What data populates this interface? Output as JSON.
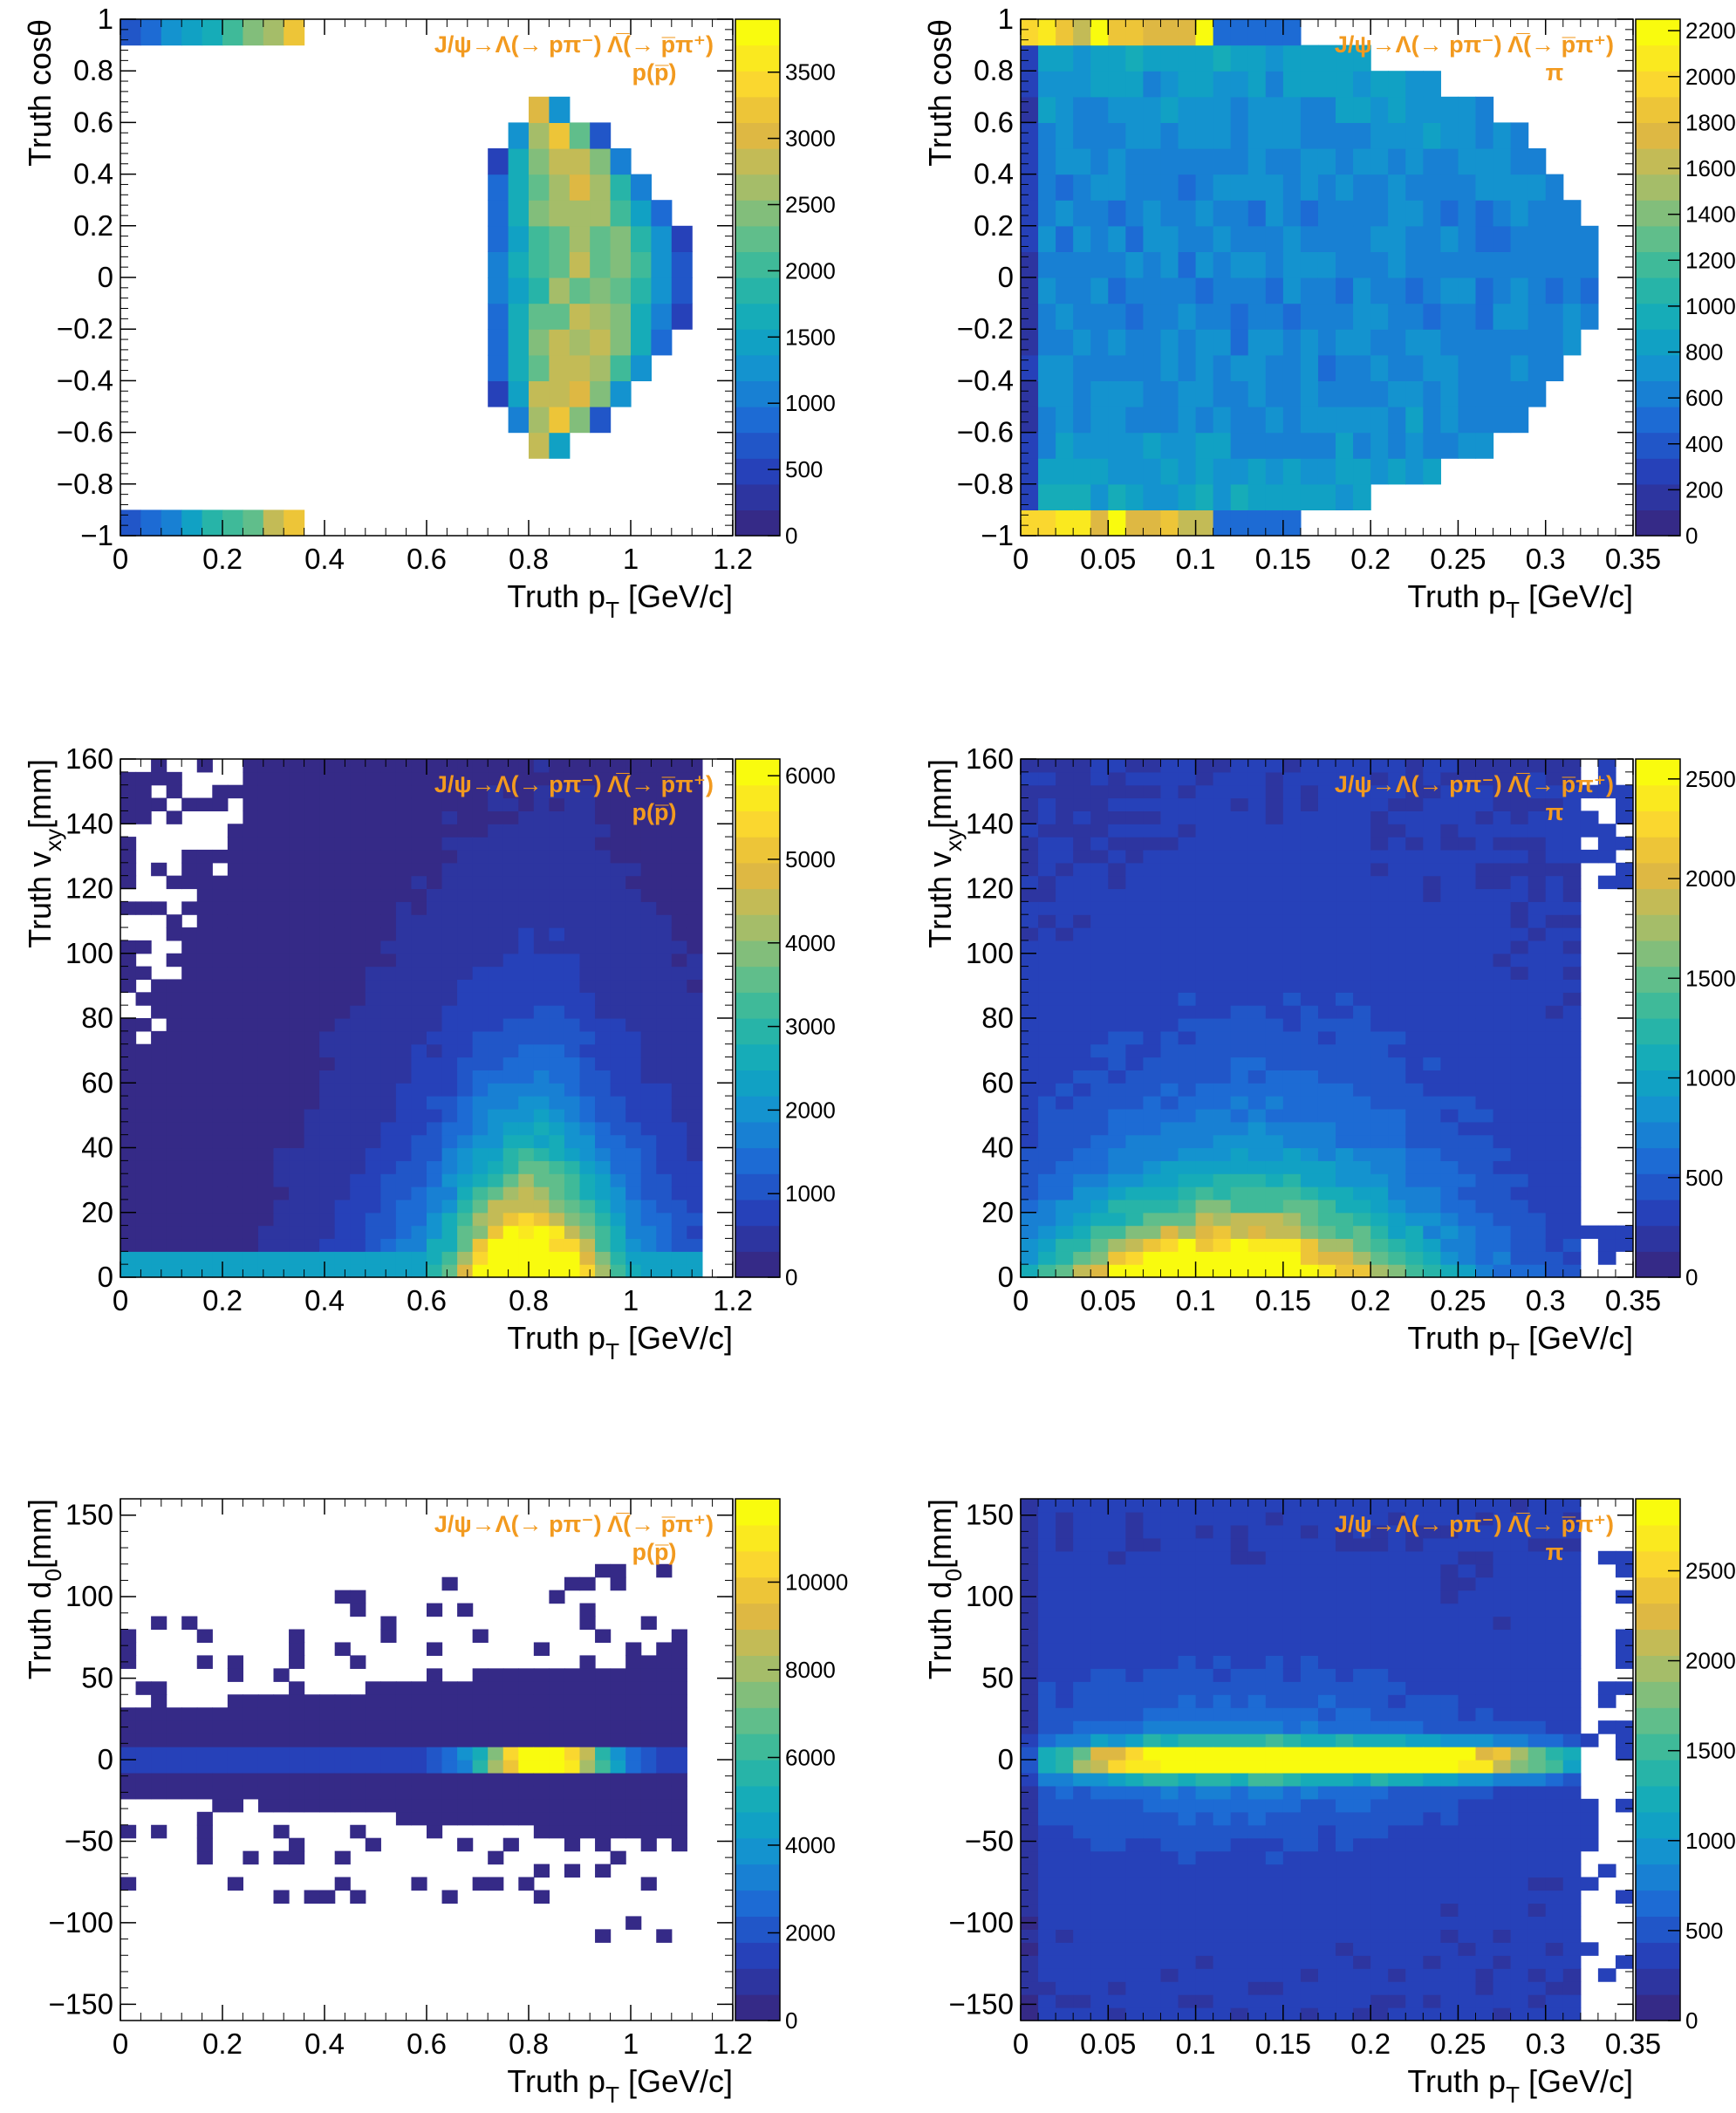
{
  "palette": {
    "stops": [
      "#352a87",
      "#263fb7",
      "#1e67d4",
      "#158fd2",
      "#0fa9be",
      "#2fb8a0",
      "#6dbf86",
      "#b0bd63",
      "#e3b73f",
      "#fbd92e",
      "#f9fb0e"
    ],
    "label_color": "#f29a1f",
    "axis_color": "#000000"
  },
  "chart_data": [
    {
      "id": "p-costheta",
      "type": "heatmap",
      "shape": "arc",
      "title_line1": "J/ψ→Λ(→ pπ⁻) Λ̅(→ p̅π⁺)",
      "title_line2": "p(p̅)",
      "xlabel": "Truth p",
      "xlabel_sub": "T",
      "xlabel_unit": " [GeV/c]",
      "ylabel": "Truth cosθ",
      "ylabel_sub": "",
      "ylabel_unit": "",
      "xlim": [
        0,
        1.2
      ],
      "ylim": [
        -1,
        1
      ],
      "x_ticks": [
        0,
        0.2,
        0.4,
        0.6,
        0.8,
        1,
        1.2
      ],
      "x_tick_labels": [
        "0",
        "0.2",
        "0.4",
        "0.6",
        "0.8",
        "1",
        "1.2"
      ],
      "y_ticks": [
        -1,
        -0.8,
        -0.6,
        -0.4,
        -0.2,
        0,
        0.2,
        0.4,
        0.6,
        0.8,
        1
      ],
      "y_tick_labels": [
        "−1",
        "−0.8",
        "−0.6",
        "−0.4",
        "−0.2",
        "0",
        "0.2",
        "0.4",
        "0.6",
        "0.8",
        "1"
      ],
      "zlim": [
        0,
        3900
      ],
      "z_ticks": [
        0,
        500,
        1000,
        1500,
        2000,
        2500,
        3000,
        3500
      ],
      "z_tick_labels": [
        "0",
        "500",
        "1000",
        "1500",
        "2000",
        "2500",
        "3000",
        "3500"
      ],
      "nx": 30,
      "ny": 20,
      "params": {
        "p0": 1.12,
        "pin": 0.7,
        "pk": 0.8,
        "width": 0.32,
        "peak": 2400,
        "edge": 0.38,
        "edgepeak": 3800
      }
    },
    {
      "id": "pi-costheta",
      "type": "heatmap",
      "shape": "ellipse",
      "title_line1": "J/ψ→Λ(→ pπ⁻) Λ̅(→ p̅π⁺)",
      "title_line2": "π",
      "xlabel": "Truth p",
      "xlabel_sub": "T",
      "xlabel_unit": " [GeV/c]",
      "ylabel": "Truth cosθ",
      "ylabel_sub": "",
      "ylabel_unit": "",
      "xlim": [
        0,
        0.35
      ],
      "ylim": [
        -1,
        1
      ],
      "x_ticks": [
        0,
        0.05,
        0.1,
        0.15,
        0.2,
        0.25,
        0.3,
        0.35
      ],
      "x_tick_labels": [
        "0",
        "0.05",
        "0.1",
        "0.15",
        "0.2",
        "0.25",
        "0.3",
        "0.35"
      ],
      "y_ticks": [
        -1,
        -0.8,
        -0.6,
        -0.4,
        -0.2,
        0,
        0.2,
        0.4,
        0.6,
        0.8,
        1
      ],
      "y_tick_labels": [
        "−1",
        "−0.8",
        "−0.6",
        "−0.4",
        "−0.2",
        "0",
        "0.2",
        "0.4",
        "0.6",
        "0.8",
        "1"
      ],
      "zlim": [
        0,
        2250
      ],
      "z_ticks": [
        0,
        200,
        400,
        600,
        800,
        1000,
        1200,
        1400,
        1600,
        1800,
        2000,
        2200
      ],
      "z_tick_labels": [
        "0",
        "200",
        "400",
        "600",
        "800",
        "1000",
        "1200",
        "1400",
        "1600",
        "1800",
        "2000",
        "2200"
      ],
      "nx": 35,
      "ny": 20,
      "params": {
        "p0": 0.33,
        "peak": 700,
        "edge": 0.115,
        "edgepeak": 2200
      }
    },
    {
      "id": "p-vxy",
      "type": "heatmap",
      "shape": "vxy-p",
      "title_line1": "J/ψ→Λ(→ pπ⁻) Λ̅(→ p̅π⁺)",
      "title_line2": "p(p̅)",
      "xlabel": "Truth p",
      "xlabel_sub": "T",
      "xlabel_unit": " [GeV/c]",
      "ylabel": "Truth v",
      "ylabel_sub": "xy",
      "ylabel_unit": "[mm]",
      "xlim": [
        0,
        1.2
      ],
      "ylim": [
        0,
        160
      ],
      "x_ticks": [
        0,
        0.2,
        0.4,
        0.6,
        0.8,
        1,
        1.2
      ],
      "x_tick_labels": [
        "0",
        "0.2",
        "0.4",
        "0.6",
        "0.8",
        "1",
        "1.2"
      ],
      "y_ticks": [
        0,
        20,
        40,
        60,
        80,
        100,
        120,
        140,
        160
      ],
      "y_tick_labels": [
        "0",
        "20",
        "40",
        "60",
        "80",
        "100",
        "120",
        "140",
        "160"
      ],
      "zlim": [
        0,
        6200
      ],
      "z_ticks": [
        0,
        1000,
        2000,
        3000,
        4000,
        5000,
        6000
      ],
      "z_tick_labels": [
        "0",
        "1000",
        "2000",
        "3000",
        "4000",
        "5000",
        "6000"
      ],
      "nx": 40,
      "ny": 40,
      "params": {
        "xmax": 1.14,
        "peakx": 0.8,
        "peak": 6100
      }
    },
    {
      "id": "pi-vxy",
      "type": "heatmap",
      "shape": "vxy-pi",
      "title_line1": "J/ψ→Λ(→ pπ⁻) Λ̅(→ p̅π⁺)",
      "title_line2": "π",
      "xlabel": "Truth p",
      "xlabel_sub": "T",
      "xlabel_unit": " [GeV/c]",
      "ylabel": "Truth v",
      "ylabel_sub": "xy",
      "ylabel_unit": "[mm]",
      "xlim": [
        0,
        0.35
      ],
      "ylim": [
        0,
        160
      ],
      "x_ticks": [
        0,
        0.05,
        0.1,
        0.15,
        0.2,
        0.25,
        0.3,
        0.35
      ],
      "x_tick_labels": [
        "0",
        "0.05",
        "0.1",
        "0.15",
        "0.2",
        "0.25",
        "0.3",
        "0.35"
      ],
      "y_ticks": [
        0,
        20,
        40,
        60,
        80,
        100,
        120,
        140,
        160
      ],
      "y_tick_labels": [
        "0",
        "20",
        "40",
        "60",
        "80",
        "100",
        "120",
        "140",
        "160"
      ],
      "zlim": [
        0,
        2600
      ],
      "z_ticks": [
        0,
        500,
        1000,
        1500,
        2000,
        2500
      ],
      "z_tick_labels": [
        "0",
        "500",
        "1000",
        "1500",
        "2000",
        "2500"
      ],
      "nx": 35,
      "ny": 40,
      "params": {
        "xmax": 0.315,
        "peakx": 0.11,
        "peak": 2550
      }
    },
    {
      "id": "p-d0",
      "type": "heatmap",
      "shape": "d0-p",
      "title_line1": "J/ψ→Λ(→ pπ⁻) Λ̅(→ p̅π⁺)",
      "title_line2": "p(p̅)",
      "xlabel": "Truth p",
      "xlabel_sub": "T",
      "xlabel_unit": " [GeV/c]",
      "ylabel": "Truth d",
      "ylabel_sub": "0",
      "ylabel_unit": "[mm]",
      "xlim": [
        0,
        1.2
      ],
      "ylim": [
        -160,
        160
      ],
      "x_ticks": [
        0,
        0.2,
        0.4,
        0.6,
        0.8,
        1,
        1.2
      ],
      "x_tick_labels": [
        "0",
        "0.2",
        "0.4",
        "0.6",
        "0.8",
        "1",
        "1.2"
      ],
      "y_ticks": [
        -150,
        -100,
        -50,
        0,
        50,
        100,
        150
      ],
      "y_tick_labels": [
        "−150",
        "−100",
        "−50",
        "0",
        "50",
        "100",
        "150"
      ],
      "zlim": [
        0,
        11900
      ],
      "z_ticks": [
        0,
        2000,
        4000,
        6000,
        8000,
        10000
      ],
      "z_tick_labels": [
        "0",
        "2000",
        "4000",
        "6000",
        "8000",
        "10000"
      ],
      "nx": 40,
      "ny": 40,
      "params": {
        "xmax": 1.11,
        "peakx": 0.83,
        "peak": 11800
      }
    },
    {
      "id": "pi-d0",
      "type": "heatmap",
      "shape": "d0-pi",
      "title_line1": "J/ψ→Λ(→ pπ⁻) Λ̅(→ p̅π⁺)",
      "title_line2": "π",
      "xlabel": "Truth p",
      "xlabel_sub": "T",
      "xlabel_unit": " [GeV/c]",
      "ylabel": "Truth d",
      "ylabel_sub": "0",
      "ylabel_unit": "[mm]",
      "xlim": [
        0,
        0.35
      ],
      "ylim": [
        -160,
        160
      ],
      "x_ticks": [
        0,
        0.05,
        0.1,
        0.15,
        0.2,
        0.25,
        0.3,
        0.35
      ],
      "x_tick_labels": [
        "0",
        "0.05",
        "0.1",
        "0.15",
        "0.2",
        "0.25",
        "0.3",
        "0.35"
      ],
      "y_ticks": [
        -150,
        -100,
        -50,
        0,
        50,
        100,
        150
      ],
      "y_tick_labels": [
        "−150",
        "−100",
        "−50",
        "0",
        "50",
        "100",
        "150"
      ],
      "zlim": [
        0,
        2900
      ],
      "z_ticks": [
        0,
        500,
        1000,
        1500,
        2000,
        2500
      ],
      "z_tick_labels": [
        "0",
        "500",
        "1000",
        "1500",
        "2000",
        "2500"
      ],
      "nx": 35,
      "ny": 40,
      "params": {
        "xmax": 0.315,
        "peakx": 0.17,
        "peak": 2850
      }
    }
  ]
}
